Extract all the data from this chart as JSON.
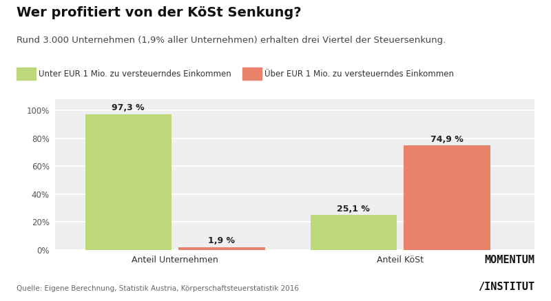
{
  "title": "Wer profitiert von der KöSt Senkung?",
  "subtitle": "Rund 3.000 Unternehmen (1,9% aller Unternehmen) erhalten drei Viertel der Steuersenkung.",
  "legend_labels": [
    "Unter EUR 1 Mio. zu versteuerndes Einkommen",
    "Über EUR 1 Mio. zu versteuerndes Einkommen"
  ],
  "legend_colors": [
    "#bdd87a",
    "#e8826a"
  ],
  "categories": [
    "Anteil Unternehmen",
    "Anteil KöSt"
  ],
  "values_green": [
    97.3,
    25.1
  ],
  "values_orange": [
    1.9,
    74.9
  ],
  "labels_green": [
    "97,3 %",
    "25,1 %"
  ],
  "labels_orange": [
    "1,9 %",
    "74,9 %"
  ],
  "bar_width": 0.18,
  "ylim": [
    0,
    108
  ],
  "yticks": [
    0,
    20,
    40,
    60,
    80,
    100
  ],
  "ytick_labels": [
    "0%",
    "20%",
    "40%",
    "60%",
    "80%",
    "100%"
  ],
  "bg_color": "#efefef",
  "fig_bg_color": "#ffffff",
  "source_text": "Quelle: Eigene Berechnung, Statistik Austria, Körperschaftsteuerstatistik 2016",
  "logo_line1": "MOMENTUM",
  "logo_line2": "/INSTITUT",
  "title_fontsize": 14,
  "subtitle_fontsize": 9.5,
  "label_fontsize": 9,
  "tick_fontsize": 8.5,
  "source_fontsize": 7.5,
  "logo_fontsize": 11
}
